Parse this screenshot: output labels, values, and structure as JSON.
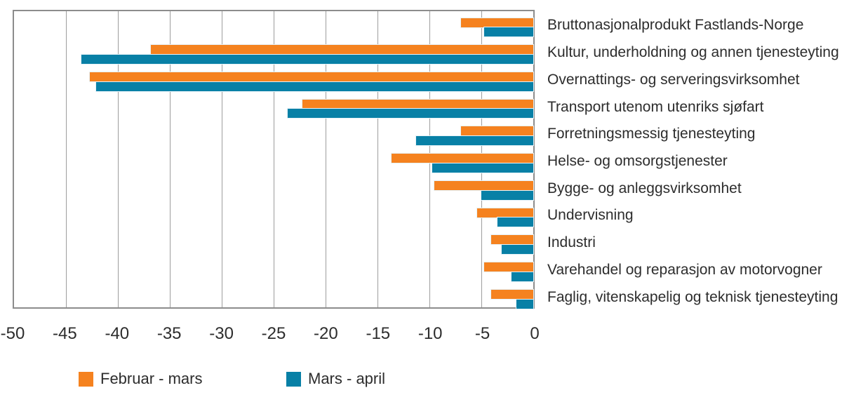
{
  "chart_data": {
    "type": "bar",
    "orientation": "horizontal",
    "title": "",
    "xlabel": "",
    "ylabel": "",
    "categories": [
      "Bruttonasjonalprodukt Fastlands-Norge",
      "Kultur, underholdning og annen tjenesteyting",
      "Overnattings- og serveringsvirksomhet",
      "Transport utenom utenriks sjøfart",
      "Forretningsmessig tjenesteyting",
      "Helse- og omsorgstjenester",
      "Bygge- og anleggsvirksomhet",
      "Undervisning",
      "Industri",
      "Varehandel og reparasjon av motorvogner",
      "Faglig, vitenskapelig og teknisk tjenesteyting"
    ],
    "series": [
      {
        "name": "Februar - mars",
        "color": "#F5821F",
        "values": [
          -6.9,
          -36.6,
          -42.5,
          -22.1,
          -6.9,
          -13.6,
          -9.5,
          -5.4,
          -4.0,
          -4.7,
          -4.0
        ]
      },
      {
        "name": "Mars - april",
        "color": "#0880A6",
        "values": [
          -4.7,
          -43.3,
          -41.9,
          -23.5,
          -11.2,
          -9.7,
          -5.0,
          -3.4,
          -3.0,
          -2.1,
          -1.6
        ]
      }
    ],
    "xlim": [
      -50,
      0
    ],
    "xticks": [
      "-50",
      "-45",
      "-40",
      "-35",
      "-30",
      "-25",
      "-20",
      "-15",
      "-10",
      "-5",
      "0"
    ],
    "grid": "vertical",
    "legend_position": "bottom"
  },
  "colors": {
    "grid": "#9D9D9D",
    "plot_border": "#8C8C8C",
    "text": "#2D2D2D",
    "background": "#FFFFFF"
  }
}
